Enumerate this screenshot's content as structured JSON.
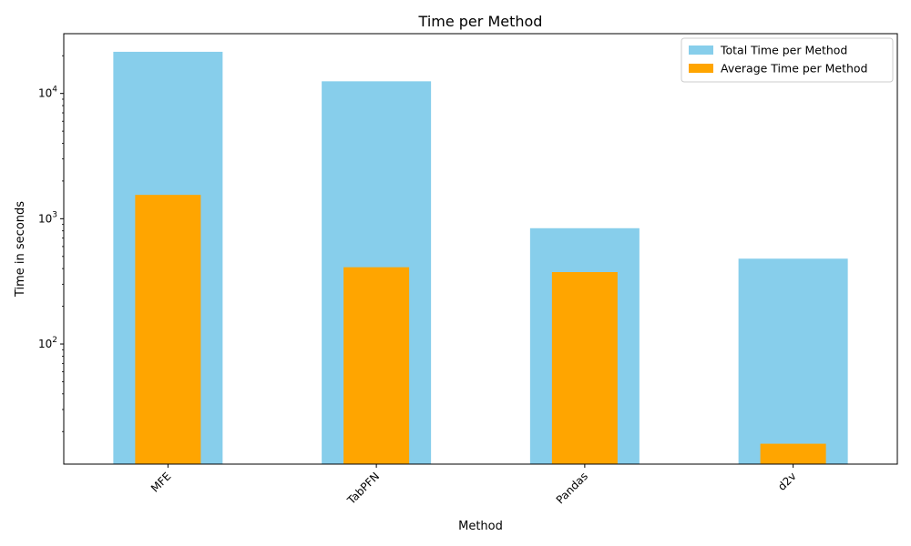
{
  "chart_data": {
    "type": "bar",
    "title": "Time per Method",
    "xlabel": "Method",
    "ylabel": "Time in seconds",
    "yscale": "log",
    "ylim": [
      11,
      30000
    ],
    "y_ticks": [
      {
        "value": 100,
        "label": "10^2",
        "base": "10",
        "exp": "2"
      },
      {
        "value": 1000,
        "label": "10^3",
        "base": "10",
        "exp": "3"
      },
      {
        "value": 10000,
        "label": "10^4",
        "base": "10",
        "exp": "4"
      }
    ],
    "categories": [
      "MFE",
      "TabPFN",
      "Pandas",
      "d2v"
    ],
    "series": [
      {
        "name": "Total Time per Method",
        "color": "#87CEEB",
        "values": [
          21500,
          12500,
          840,
          480
        ]
      },
      {
        "name": "Average Time per Method",
        "color": "#FFA500",
        "values": [
          1550,
          410,
          375,
          16
        ]
      }
    ],
    "legend_position": "top-right",
    "grid": false
  }
}
